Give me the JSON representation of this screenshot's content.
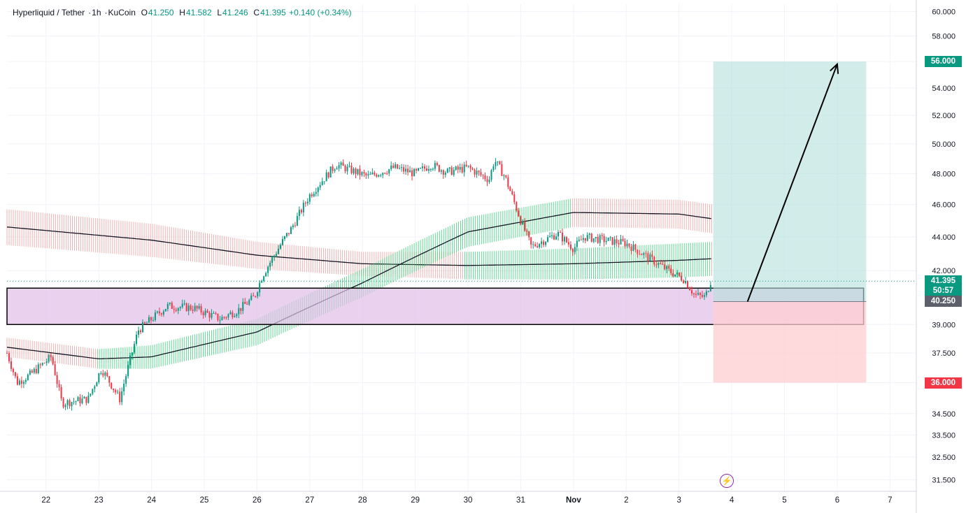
{
  "header": {
    "symbol": "Hyperliquid / Tether",
    "interval": "1h",
    "exchange": "KuCoin",
    "open_label": "O",
    "open": "41.250",
    "high_label": "H",
    "high": "41.582",
    "low_label": "L",
    "low": "41.246",
    "close_label": "C",
    "close": "41.395",
    "change": "+0.140 (+0.34%)"
  },
  "badges": {
    "target": "56.000",
    "last_price": "41.395",
    "countdown": "50:57",
    "entry": "40.250",
    "stop": "36.000"
  },
  "colors": {
    "up": "#089981",
    "down": "#f23645",
    "zone_fill": "#e1bee7",
    "profit_fill": "#b2dfdb",
    "loss_fill": "#ffcdd2",
    "badge_dark": "#131722",
    "badge_green": "#089981",
    "badge_red": "#f23645",
    "band_green": "#2ecc71",
    "band_red": "#e57373"
  },
  "icons": {
    "replay": "lightning-icon"
  },
  "chart_data": {
    "type": "candlestick",
    "title": "Hyperliquid / Tether · 1h · KuCoin",
    "y_axis": {
      "ticks": [
        "60.000",
        "58.000",
        "56.000",
        "54.000",
        "52.000",
        "50.000",
        "48.000",
        "46.000",
        "44.000",
        "42.000",
        "40.250",
        "39.000",
        "37.500",
        "36.000",
        "34.500",
        "33.500",
        "32.500",
        "31.500"
      ],
      "tick_values": [
        60,
        58,
        56,
        54,
        52,
        50,
        48,
        46,
        44,
        42,
        40.25,
        39,
        37.5,
        36,
        34.5,
        33.5,
        32.5,
        31.5
      ],
      "scale": "log",
      "range": [
        31.0,
        60.6
      ]
    },
    "x_axis": {
      "ticks": [
        "22",
        "23",
        "24",
        "25",
        "26",
        "27",
        "28",
        "29",
        "30",
        "31",
        "Nov",
        "2",
        "3",
        "4",
        "5",
        "6",
        "7"
      ],
      "tick_days": [
        0,
        1,
        2,
        3,
        4,
        5,
        6,
        7,
        8,
        9,
        10,
        11,
        12,
        13,
        14,
        15,
        16
      ],
      "range_days": [
        -0.74,
        16.5
      ]
    },
    "price_anchors": {
      "days": [
        -0.74,
        -0.55,
        -0.3,
        0.1,
        0.3,
        0.8,
        1.05,
        1.4,
        1.75,
        2.3,
        2.8,
        3.3,
        3.65,
        3.95,
        4.1,
        4.5,
        4.65,
        5.0,
        5.5,
        6.1,
        6.6,
        7.0,
        7.3,
        7.6,
        8.0,
        8.4,
        8.5,
        8.7,
        9.0,
        9.2,
        9.7,
        10.0,
        10.2,
        10.6,
        11.0,
        11.4,
        11.8,
        12.1,
        12.3,
        12.5,
        12.6
      ],
      "prices": [
        37.5,
        36.0,
        36.4,
        37.3,
        35.0,
        35.2,
        36.7,
        35.2,
        38.7,
        40.0,
        39.9,
        39.3,
        39.8,
        40.5,
        41.7,
        43.8,
        44.5,
        46.6,
        48.6,
        47.8,
        48.4,
        48.0,
        48.6,
        48.1,
        48.4,
        47.6,
        48.9,
        47.8,
        45.0,
        43.4,
        44.2,
        43.3,
        44.0,
        43.8,
        43.6,
        42.8,
        42.0,
        41.5,
        40.6,
        40.5,
        41.4
      ]
    },
    "long_position": {
      "entry": 40.25,
      "target": 56.0,
      "stop": 36.0,
      "start_day": 12.65,
      "end_day": 15.55
    },
    "support_zone": {
      "low": 39.0,
      "high": 41.0,
      "start_day": -0.74,
      "end_day": 15.5
    },
    "arrow": {
      "from": [
        13.3,
        40.25
      ],
      "to": [
        15.0,
        55.8
      ]
    },
    "bands": [
      {
        "name": "slow-band",
        "days": [
          -0.74,
          2,
          4,
          6,
          8,
          10,
          12,
          12.65
        ],
        "center": [
          44.6,
          43.8,
          42.9,
          42.4,
          42.3,
          42.4,
          42.6,
          42.7
        ],
        "width": [
          1.1,
          1.0,
          0.8,
          0.7,
          0.8,
          0.9,
          1.0,
          1.0
        ]
      },
      {
        "name": "fast-band",
        "days": [
          -0.74,
          1,
          2,
          4,
          6,
          8,
          10,
          12,
          12.65
        ],
        "center": [
          37.8,
          37.2,
          37.3,
          38.6,
          41.3,
          44.3,
          45.5,
          45.4,
          45.1
        ],
        "width": [
          0.5,
          0.5,
          0.6,
          0.7,
          0.8,
          0.9,
          0.9,
          0.9,
          0.9
        ]
      }
    ],
    "last_price": 41.395
  }
}
